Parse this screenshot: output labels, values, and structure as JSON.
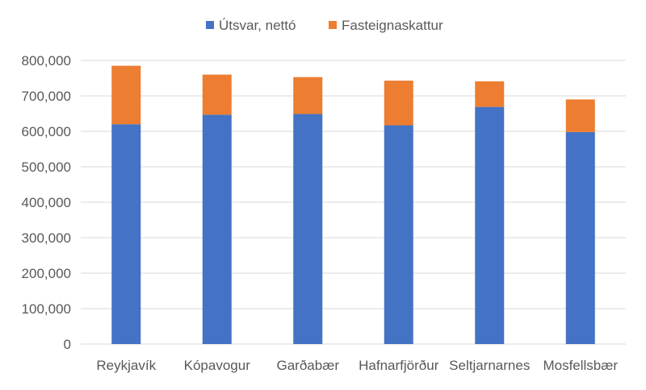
{
  "chart_data": {
    "type": "bar",
    "stacked": true,
    "categories": [
      "Reykjavík",
      "Kópavogur",
      "Garðabær",
      "Hafnarfjörður",
      "Seltjarnarnes",
      "Mosfellsbær"
    ],
    "series": [
      {
        "name": "Útsvar, nettó",
        "color": "#4472C4",
        "values": [
          620000,
          647000,
          649000,
          617000,
          669000,
          598000
        ]
      },
      {
        "name": "Fasteignaskattur",
        "color": "#ED7D31",
        "values": [
          165000,
          113000,
          104000,
          126000,
          72000,
          92000
        ]
      }
    ],
    "yticks": [
      "0",
      "100,000",
      "200,000",
      "300,000",
      "400,000",
      "500,000",
      "600,000",
      "700,000",
      "800,000"
    ],
    "ylim": [
      0,
      800000
    ],
    "grid": true,
    "legend": "top"
  }
}
